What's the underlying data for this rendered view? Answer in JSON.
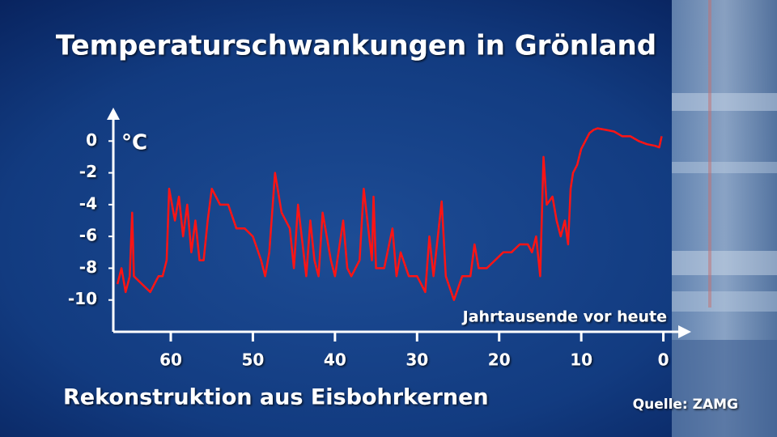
{
  "chart_data": {
    "type": "line",
    "title": "Temperaturschwankungen in Grönland",
    "subtitle": "Rekonstruktion aus Eisbohrkernen",
    "y_label": "°C",
    "x_label": "Jahrtausende vor heute",
    "source": "Quelle: ZAMG",
    "color": "#ff1414",
    "xlim": [
      67,
      -3
    ],
    "xticks": [
      60,
      50,
      40,
      30,
      20,
      10,
      0
    ],
    "ylim": [
      -12,
      2
    ],
    "yticks": [
      0,
      -2,
      -4,
      -6,
      -8,
      -10
    ],
    "x": [
      66.5,
      66,
      65.5,
      65,
      64.7,
      64.5,
      63.5,
      62.5,
      61.5,
      61,
      60.5,
      60.2,
      59.5,
      59,
      58.5,
      58,
      57.5,
      57,
      56.5,
      56,
      55.5,
      55,
      54,
      53,
      52,
      51,
      50,
      49,
      48.5,
      48,
      47.3,
      46.5,
      45.5,
      45,
      44.5,
      43.5,
      43,
      42.5,
      42,
      41.5,
      40.5,
      40,
      39,
      38.5,
      38,
      37,
      36.5,
      35.5,
      35.3,
      35,
      34,
      33,
      32.5,
      32,
      31,
      30,
      29.5,
      29,
      28.5,
      28,
      27,
      26.5,
      25.5,
      24.5,
      23.5,
      23,
      22.5,
      21.5,
      20.5,
      19.5,
      18.5,
      17.5,
      16.5,
      16,
      15.5,
      15,
      14.6,
      14.2,
      13.5,
      13,
      12.5,
      12,
      11.6,
      11.3,
      11,
      10.5,
      10,
      9.5,
      9,
      8.5,
      8,
      7,
      6,
      5,
      4,
      3,
      2,
      1,
      0.5,
      0.2
    ],
    "values": [
      -9,
      -8,
      -9.5,
      -8.5,
      -4.5,
      -8.5,
      -9,
      -9.5,
      -8.5,
      -8.5,
      -7.5,
      -3,
      -5,
      -3.5,
      -6,
      -4,
      -7,
      -5,
      -7.5,
      -7.5,
      -5,
      -3,
      -4,
      -4,
      -5.5,
      -5.5,
      -6,
      -7.5,
      -8.5,
      -7,
      -2,
      -4.5,
      -5.5,
      -8,
      -4,
      -8.5,
      -5,
      -7.5,
      -8.5,
      -4.5,
      -7.5,
      -8.5,
      -5,
      -8,
      -8.5,
      -7.5,
      -3,
      -7.5,
      -3.5,
      -8,
      -8,
      -5.5,
      -8.5,
      -7,
      -8.5,
      -8.5,
      -9,
      -9.5,
      -6,
      -8.5,
      -3.8,
      -8.5,
      -10,
      -8.5,
      -8.5,
      -6.5,
      -8,
      -8,
      -7.5,
      -7,
      -7,
      -6.5,
      -6.5,
      -7,
      -6,
      -8.5,
      -1,
      -4,
      -3.5,
      -5,
      -6,
      -5,
      -6.5,
      -3,
      -2,
      -1.5,
      -0.5,
      0,
      0.5,
      0.7,
      0.8,
      0.7,
      0.6,
      0.3,
      0.3,
      0,
      -0.2,
      -0.3,
      -0.4,
      0.3
    ]
  }
}
